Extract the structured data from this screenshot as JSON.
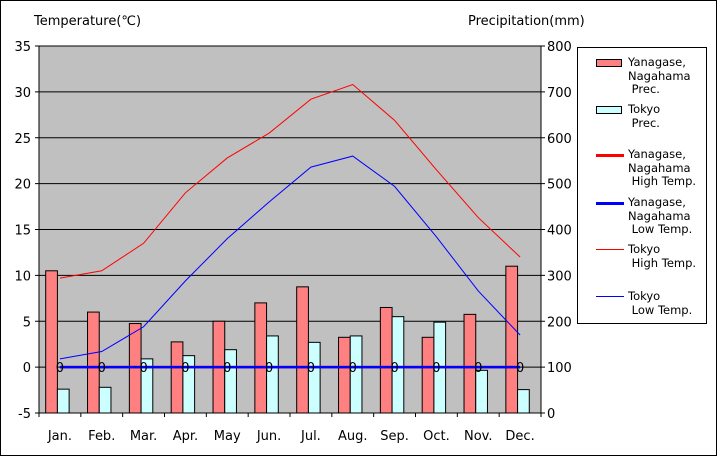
{
  "chart_data": {
    "type": "bar+line",
    "left_axis_title": "Temperature(℃)",
    "right_axis_title": "Precipitation(mm)",
    "categories": [
      "Jan.",
      "Feb.",
      "Mar.",
      "Apr.",
      "May",
      "Jun.",
      "Jul.",
      "Aug.",
      "Sep.",
      "Oct.",
      "Nov.",
      "Dec."
    ],
    "left_axis": {
      "min": -5,
      "max": 35,
      "step": 5
    },
    "right_axis": {
      "min": 0,
      "max": 800,
      "step": 100
    },
    "grid": true,
    "background": "#c0c0c0",
    "legend_position": "right",
    "bars": [
      {
        "name": "Yanagase, Nagahama Prec.",
        "color": "#ff8080",
        "values": [
          310,
          220,
          195,
          155,
          200,
          240,
          275,
          165,
          230,
          165,
          215,
          320
        ]
      },
      {
        "name": "Tokyo Prec.",
        "color": "#ccffff",
        "values": [
          52,
          56,
          118,
          125,
          138,
          168,
          154,
          168,
          210,
          198,
          93,
          51
        ]
      }
    ],
    "lines": [
      {
        "name": "Yanagase, Nagahama High Temp.",
        "color": "#ff0000",
        "width": 2.5,
        "values": [
          0,
          0,
          0,
          0,
          0,
          0,
          0,
          0,
          0,
          0,
          0,
          0
        ]
      },
      {
        "name": "Yanagase, Nagahama Low Temp.",
        "color": "#0000ff",
        "width": 2.5,
        "values": [
          0,
          0,
          0,
          0,
          0,
          0,
          0,
          0,
          0,
          0,
          0,
          0
        ]
      },
      {
        "name": "Tokyo High Temp.",
        "color": "#ff0000",
        "width": 1,
        "values": [
          9.7,
          10.5,
          13.5,
          19.0,
          22.8,
          25.5,
          29.2,
          30.8,
          26.9,
          21.5,
          16.3,
          12.0
        ]
      },
      {
        "name": "Tokyo Low Temp.",
        "color": "#0000ff",
        "width": 1,
        "values": [
          0.9,
          1.7,
          4.4,
          9.4,
          14.0,
          18.0,
          21.8,
          23.0,
          19.7,
          14.2,
          8.3,
          3.5
        ]
      }
    ],
    "point_labels": {
      "series": "Yanagase, Nagahama Low Temp.",
      "text": "0"
    }
  }
}
